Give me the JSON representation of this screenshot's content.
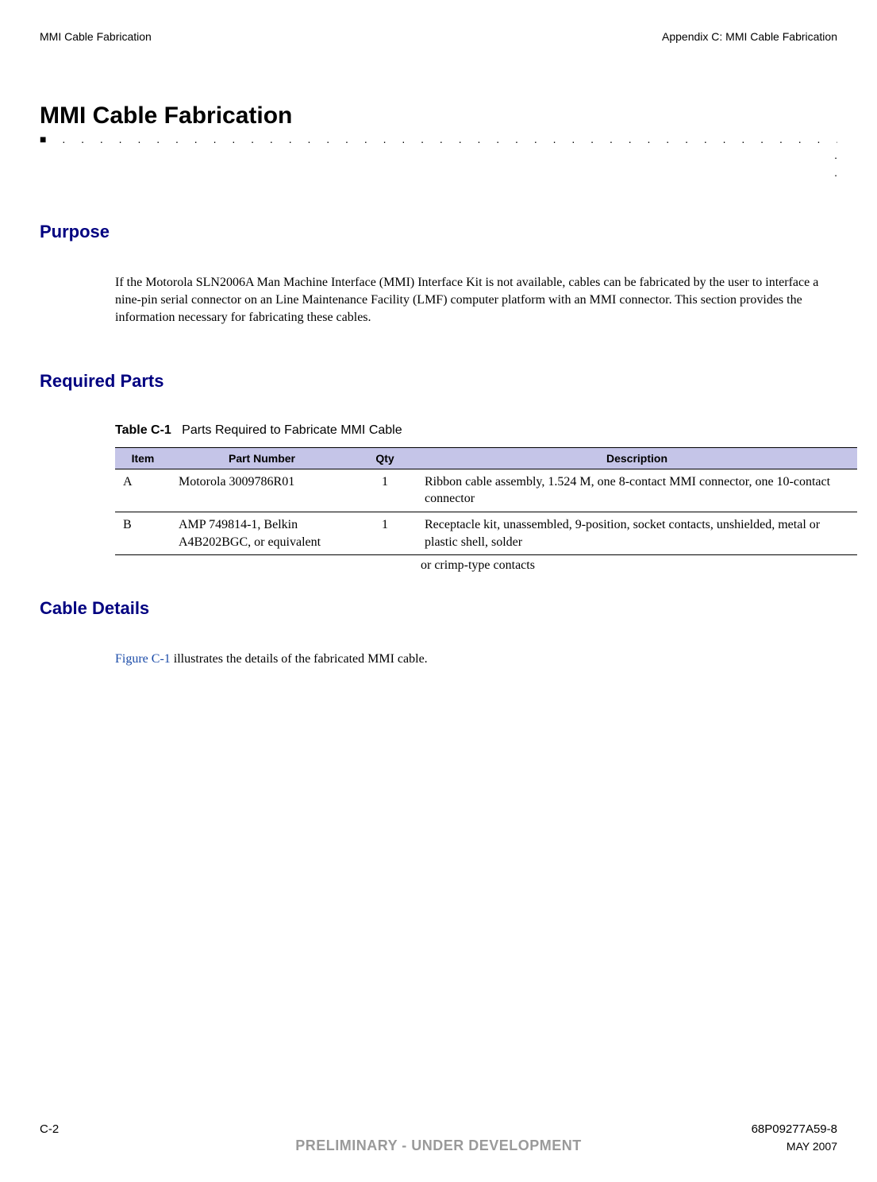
{
  "header": {
    "left": "MMI Cable Fabrication",
    "right": "Appendix C: MMI Cable Fabrication"
  },
  "title": "MMI Cable Fabrication",
  "dotRule": "■ . . . . . . . . . . . . . . . . . . . . . . . . . . . . . . . . . . . . . . . . . . . . . . . . . . . . . . . . . .",
  "dotRight": ".\n.",
  "sections": {
    "purpose": {
      "title": "Purpose",
      "body": "If the Motorola SLN2006A Man Machine Interface (MMI) Interface Kit is not available, cables can be fabricated by the user to interface a nine-pin serial connector on an Line Maintenance Facility (LMF) computer platform with an MMI connector. This section provides the information necessary for fabricating these cables."
    },
    "requiredParts": {
      "title": "Required Parts",
      "tableLabel": "Table C-1",
      "tableCaption": "Parts Required to Fabricate MMI Cable"
    },
    "cableDetails": {
      "title": "Cable Details",
      "figureRef": "Figure C-1",
      "bodyRest": " illustrates the details of the fabricated MMI cable."
    }
  },
  "colors": {
    "sectionTitle": "#000080",
    "tableHeaderBg": "#c5c5e8",
    "link": "#1a4ba8",
    "prelim": "#9a9a9a"
  },
  "table": {
    "columns": [
      "Item",
      "Part Number",
      "Qty",
      "Description"
    ],
    "rows": [
      {
        "item": "A",
        "part": "Motorola 3009786R01",
        "qty": "1",
        "desc": "Ribbon cable assembly, 1.524 M, one 8-contact MMI connector, one 10-contact connector"
      },
      {
        "item": "B",
        "part": "AMP 749814-1, Belkin A4B202BGC, or equivalent",
        "qty": "1",
        "desc": "Receptacle kit, unassembled, 9-position, socket contacts, unshielded, metal or plastic shell, solder"
      }
    ],
    "overflowDesc": "or crimp-type contacts"
  },
  "footer": {
    "pageNum": "C-2",
    "docNum": "68P09277A59-8",
    "prelim": "PRELIMINARY - UNDER DEVELOPMENT",
    "date": "MAY 2007"
  }
}
